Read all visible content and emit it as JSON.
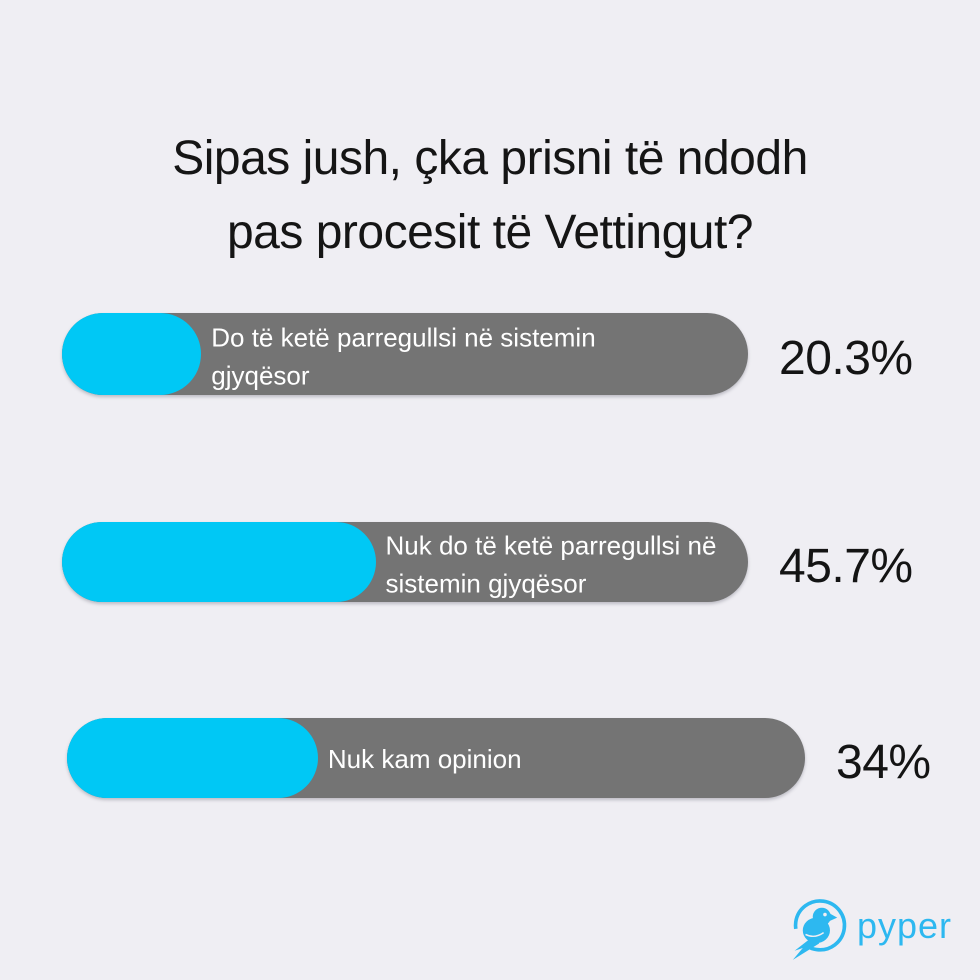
{
  "title": {
    "text": "Sipas jush, çka prisni të ndodh pas procesit të Vettingut?",
    "line1": "Sipas jush, çka prisni të ndodh",
    "line2": "pas procesit të Vettingut?"
  },
  "chart_data": {
    "type": "bar",
    "orientation": "horizontal",
    "title": "Sipas jush, çka prisni të ndodh pas procesit të Vettingut?",
    "categories": [
      "Do të ketë parregullsi në sistemin gjyqësor",
      "Nuk do të ketë parregullsi në sistemin gjyqësor",
      "Nuk kam opinion"
    ],
    "label_lines": [
      [
        "Do të ketë parregullsi në sistemin",
        "gjyqësor"
      ],
      [
        "Nuk do të ketë parregullsi në",
        "sistemin gjyqësor"
      ],
      [
        "Nuk kam opinion"
      ]
    ],
    "values": [
      20.3,
      45.7,
      34
    ],
    "value_labels": [
      "20.3%",
      "45.7%",
      "34%"
    ],
    "value_range": [
      0,
      100
    ],
    "grid": false,
    "legend": false,
    "colors": {
      "fill": "#00C8F5",
      "track": "#747474",
      "label_text": "#FFFFFF",
      "value_text": "#141414",
      "background": "#EFEEF3",
      "logo": "#2DB8F0"
    }
  },
  "footer": {
    "brand": "pyper",
    "logo_icon": "pyper-bird-icon"
  }
}
